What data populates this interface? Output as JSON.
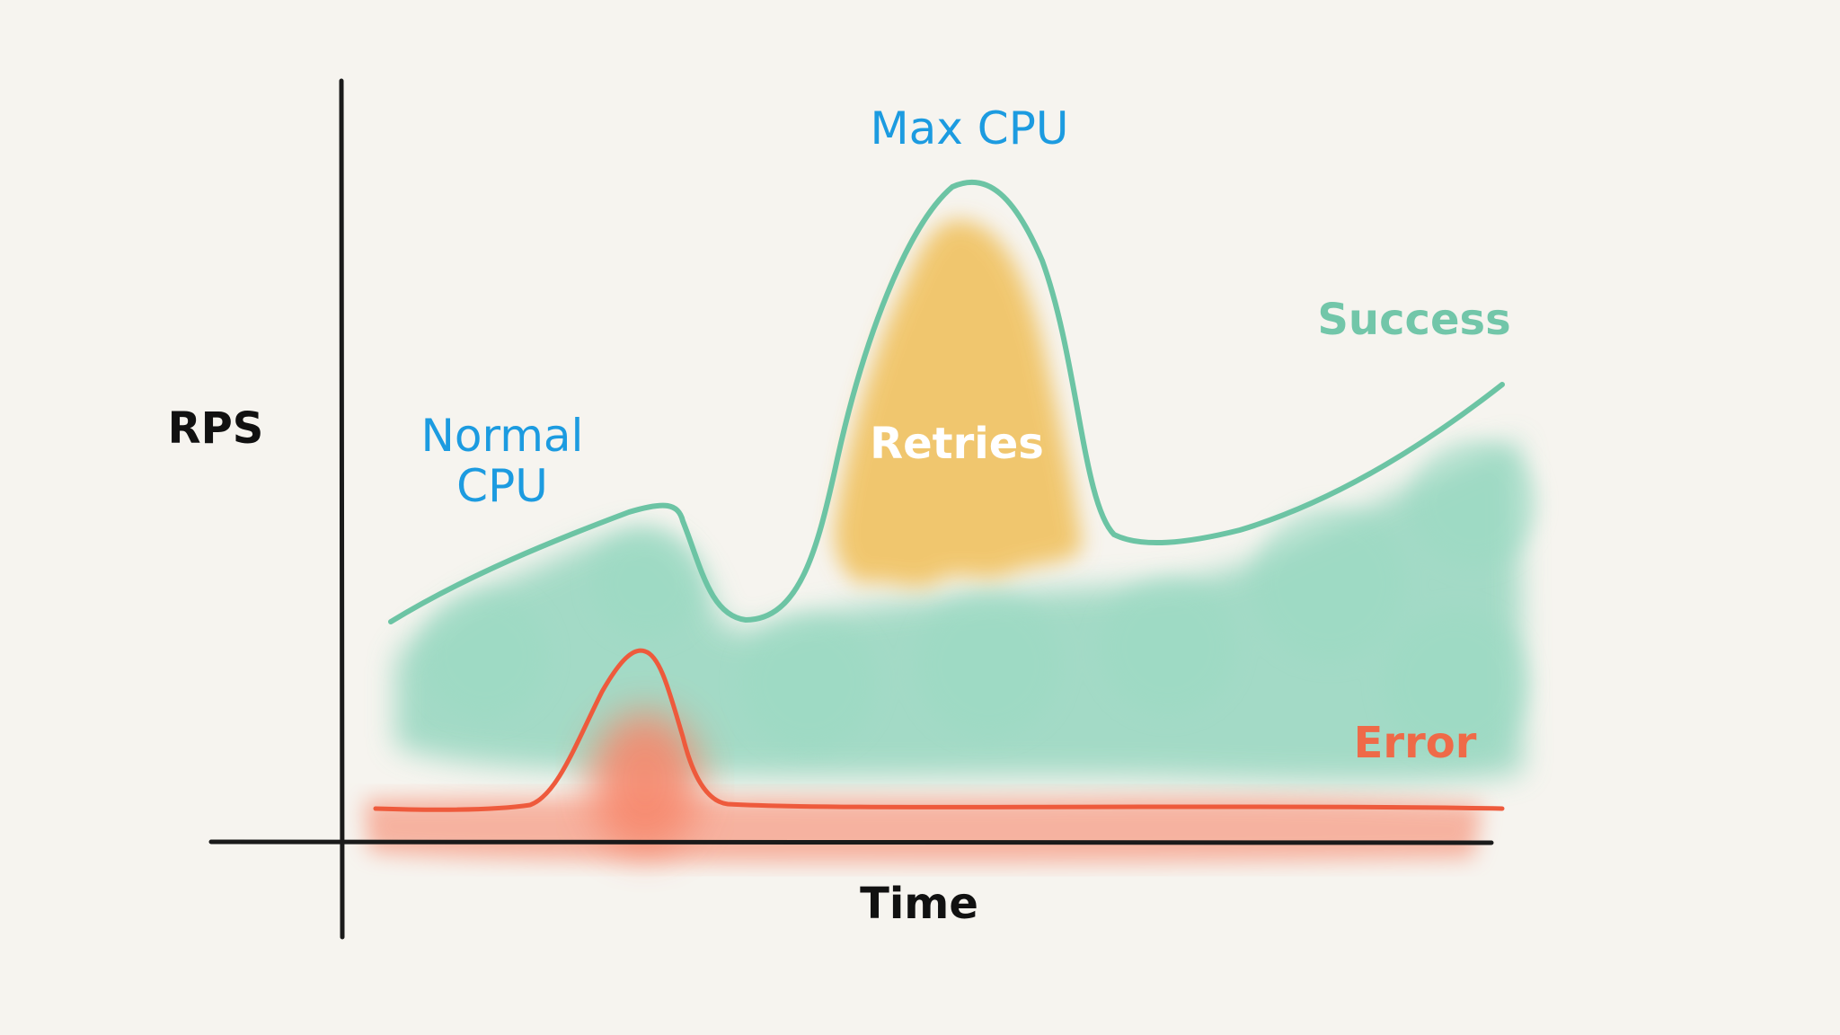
{
  "axes": {
    "y_label": "RPS",
    "x_label": "Time"
  },
  "annotations": {
    "normal_cpu_line1": "Normal",
    "normal_cpu_line2": "CPU",
    "max_cpu": "Max CPU",
    "retries": "Retries",
    "success": "Success",
    "error": "Error"
  },
  "colors": {
    "background": "#f6f4ef",
    "axis": "#1a1a1a",
    "annotation_blue": "#1c9be0",
    "success_line": "#6cc4a4",
    "success_fill": "#8fd4bc",
    "success_label": "#72c6a9",
    "retries_fill": "#f0bf58",
    "retries_label": "#ffffff",
    "error_line": "#ee5a3c",
    "error_fill": "#f7876c",
    "error_label": "#ef6a48"
  }
}
